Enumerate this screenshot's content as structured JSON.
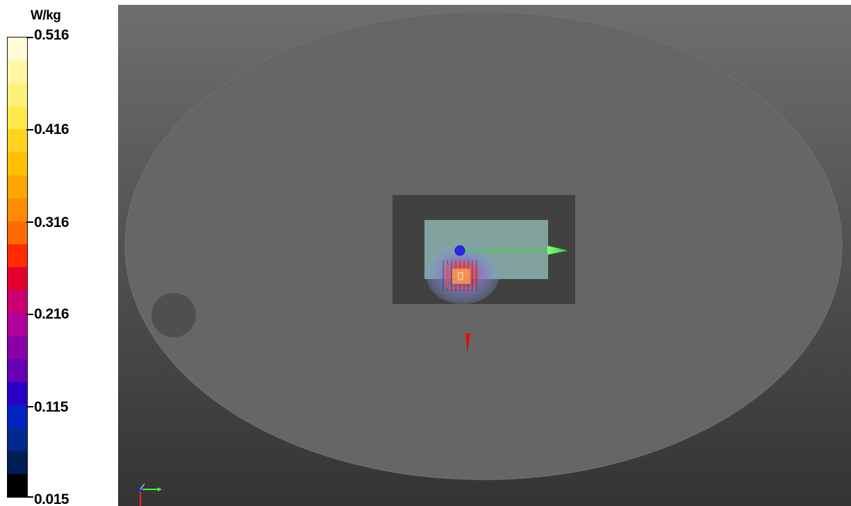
{
  "colorbar": {
    "unit": "W/kg",
    "tick_labels": [
      "0.516",
      "0.416",
      "0.316",
      "0.216",
      "0.115",
      "0.015"
    ],
    "colors": [
      "#fffbd6",
      "#fff7a6",
      "#fff07a",
      "#ffe84a",
      "#ffd21e",
      "#ffc000",
      "#ffa500",
      "#ff8c00",
      "#ff6a00",
      "#ff2a00",
      "#e6002e",
      "#cc0070",
      "#b0009a",
      "#8a00a8",
      "#6600b4",
      "#2a00c8",
      "#0022c0",
      "#002a8c",
      "#001e55",
      "#000000"
    ]
  },
  "viewport": {
    "background_top": "#6e6e6e",
    "background_bottom": "#343434",
    "phantom_color": "#666666",
    "scan_region_color": "#414141",
    "device_color": "#88aaa6",
    "hotspot_colors": [
      "#7fa3d8",
      "#8a78c8",
      "#e0506a",
      "#ff8a3c"
    ],
    "axis_colors": {
      "x": "#33ff33",
      "y": "#ffffff",
      "z": "#ff2020",
      "origin": "#2020ff"
    }
  }
}
